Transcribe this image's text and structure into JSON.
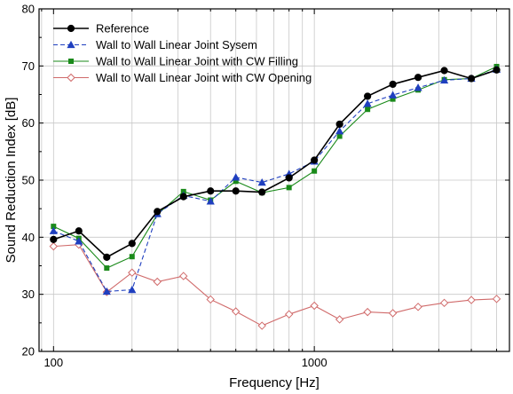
{
  "chart_data": {
    "type": "line",
    "xlabel": "Frequency [Hz]",
    "ylabel": "Sound Reduction Index [dB]",
    "x_scale": "log",
    "xlim": [
      88,
      5600
    ],
    "ylim": [
      20,
      80
    ],
    "x_ticks": [
      100,
      1000
    ],
    "x_tick_labels": [
      "100",
      "1000"
    ],
    "y_ticks": [
      20,
      30,
      40,
      50,
      60,
      70,
      80
    ],
    "y_tick_labels": [
      "20",
      "30",
      "40",
      "50",
      "60",
      "70",
      "80"
    ],
    "grid": true,
    "legend_position": "top-left",
    "x": [
      100,
      125,
      160,
      200,
      250,
      315,
      400,
      500,
      630,
      800,
      1000,
      1250,
      1600,
      2000,
      2500,
      3150,
      4000,
      5000
    ],
    "series": [
      {
        "name": "Reference",
        "color": "#000000",
        "dash": "solid",
        "marker": "circle",
        "values": [
          39.6,
          41.1,
          36.5,
          38.9,
          44.5,
          47.1,
          48.1,
          48.1,
          47.9,
          50.4,
          53.5,
          59.8,
          64.7,
          66.8,
          68.0,
          69.2,
          67.8,
          69.3
        ]
      },
      {
        "name": "Wall to Wall Linear Joint Sysem",
        "color": "#1f3fbf",
        "dash": "dashed",
        "marker": "triangle",
        "values": [
          41.1,
          39.3,
          30.5,
          30.8,
          44.1,
          47.3,
          46.3,
          50.5,
          49.6,
          51.1,
          53.3,
          58.6,
          63.4,
          64.9,
          66.2,
          67.5,
          67.8,
          69.4
        ]
      },
      {
        "name": "Wall to Wall Linear Joint with CW Filling",
        "color": "#1a8a1a",
        "dash": "solid",
        "marker": "square",
        "values": [
          41.9,
          39.8,
          34.6,
          36.6,
          44.0,
          48.0,
          46.5,
          49.8,
          47.8,
          48.7,
          51.6,
          57.7,
          62.4,
          64.2,
          65.8,
          67.6,
          67.8,
          69.9
        ]
      },
      {
        "name": "Wall to Wall Linear Joint with CW Opening",
        "color": "#d06a6a",
        "dash": "solid",
        "marker": "diamond-open",
        "values": [
          38.4,
          38.7,
          30.4,
          33.8,
          32.2,
          33.2,
          29.1,
          27.0,
          24.5,
          26.5,
          28.0,
          25.6,
          26.9,
          26.7,
          27.8,
          28.5,
          29.0,
          29.2
        ]
      }
    ]
  }
}
